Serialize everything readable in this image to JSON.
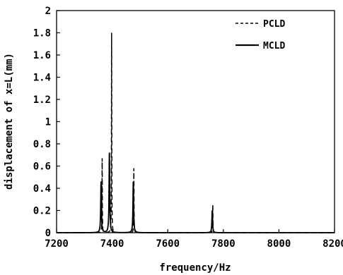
{
  "chart_data": {
    "type": "line",
    "xlabel": "frequency/Hz",
    "ylabel": "displacement of x=L(mm)",
    "xlim": [
      7200,
      8200
    ],
    "ylim": [
      0,
      2
    ],
    "x_ticks": [
      "7200",
      "7400",
      "7600",
      "7800",
      "8000",
      "8200"
    ],
    "y_ticks": [
      "0",
      "0.2",
      "0.4",
      "0.6",
      "0.8",
      "1",
      "1.2",
      "1.4",
      "1.6",
      "1.8",
      "2"
    ],
    "grid": false,
    "legend_position": "top-right",
    "series": [
      {
        "name": "PCLD",
        "style": "dashed",
        "color": "#000000",
        "peaks": [
          {
            "freq": 7364,
            "amplitude": 0.67
          },
          {
            "freq": 7398,
            "amplitude": 1.8
          },
          {
            "freq": 7478,
            "amplitude": 0.58
          },
          {
            "freq": 7762,
            "amplitude": 0.25
          }
        ]
      },
      {
        "name": "MCLD",
        "style": "solid",
        "color": "#000000",
        "peaks": [
          {
            "freq": 7360,
            "amplitude": 0.46
          },
          {
            "freq": 7390,
            "amplitude": 0.72
          },
          {
            "freq": 7476,
            "amplitude": 0.46
          },
          {
            "freq": 7760,
            "amplitude": 0.2
          }
        ]
      }
    ]
  }
}
